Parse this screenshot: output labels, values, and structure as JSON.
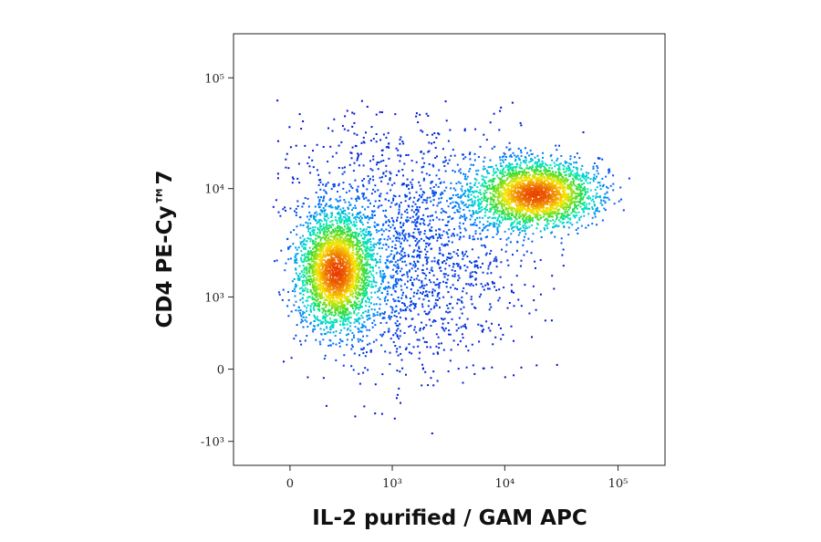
{
  "chart_data": {
    "type": "density-scatter",
    "x_label": "IL-2 purified / GAM APC",
    "y_label": "CD4 PE-Cy™7",
    "xscale": "biexponential",
    "yscale": "biexponential",
    "xlim": [
      -360,
      260000
    ],
    "ylim": [
      -1700,
      250000
    ],
    "xticks": [
      0,
      {
        "value": 1000,
        "label": "10³"
      },
      {
        "value": 10000,
        "label": "10⁴"
      },
      {
        "value": 100000,
        "label": "10⁵"
      }
    ],
    "yticks": [
      {
        "value": -1000,
        "label": "-10³"
      },
      0,
      {
        "value": 1000,
        "label": "10³"
      },
      {
        "value": 10000,
        "label": "10⁴"
      },
      {
        "value": 100000,
        "label": "10⁵"
      }
    ]
  }
}
